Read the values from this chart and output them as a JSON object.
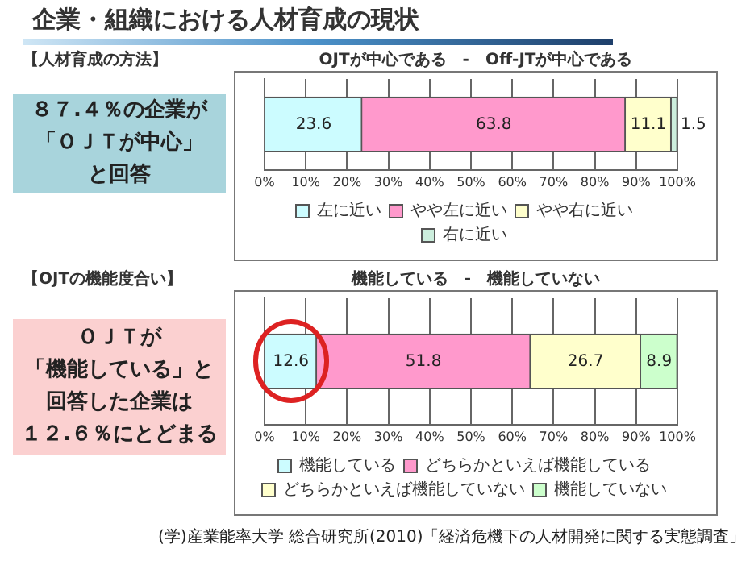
{
  "chart_data": [
    {
      "type": "bar",
      "title": "企業・組織における人材育成の現状",
      "subtitle": "【人材育成の方法】",
      "orientation": "horizontal",
      "stacked": true,
      "categories": [
        null
      ],
      "series": [
        {
          "name": "左に近い",
          "color": "#ccfcff",
          "values": [
            23.6
          ]
        },
        {
          "name": "やや左に近い",
          "color": "#ff99cc",
          "values": [
            63.8
          ]
        },
        {
          "name": "やや右に近い",
          "color": "#ffffcc",
          "values": [
            11.1
          ]
        },
        {
          "name": "右に近い",
          "color": "#cceedd",
          "values": [
            1.5
          ]
        }
      ],
      "xlim": [
        0,
        100
      ],
      "xticks": [
        {
          "value": 0,
          "label": "0%"
        },
        {
          "value": 10,
          "label": "10%"
        },
        {
          "value": 20,
          "label": "20%"
        },
        {
          "value": 30,
          "label": "30%"
        },
        {
          "value": 40,
          "label": "40%"
        },
        {
          "value": 50,
          "label": "50%"
        },
        {
          "value": 60,
          "label": "60%"
        },
        {
          "value": 70,
          "label": "70%"
        },
        {
          "value": 80,
          "label": "80%"
        },
        {
          "value": 90,
          "label": "90%"
        },
        {
          "value": 100,
          "label": "100%"
        }
      ],
      "grid": "x",
      "legend": "bottom",
      "tick_labels": "x",
      "data_labels": true,
      "annotations": [
        "OJTが中心である　-　Off-JTが中心である",
        "８７.４％の企業が",
        "「ＯＪＴが中心」",
        "と回答"
      ]
    },
    {
      "type": "bar",
      "subtitle": "【OJTの機能度合い】",
      "orientation": "horizontal",
      "stacked": true,
      "categories": [
        null
      ],
      "series": [
        {
          "name": "機能している",
          "color": "#ccfcff",
          "values": [
            12.6
          ]
        },
        {
          "name": "どちらかといえば機能している",
          "color": "#ff99cc",
          "values": [
            51.8
          ]
        },
        {
          "name": "どちらかといえば機能していない",
          "color": "#ffffcc",
          "values": [
            26.7
          ]
        },
        {
          "name": "機能していない",
          "color": "#ccffcc",
          "values": [
            8.9
          ]
        }
      ],
      "xlim": [
        0,
        100
      ],
      "xticks": [
        {
          "value": 0,
          "label": "0%"
        },
        {
          "value": 10,
          "label": "10%"
        },
        {
          "value": 20,
          "label": "20%"
        },
        {
          "value": 30,
          "label": "30%"
        },
        {
          "value": 40,
          "label": "40%"
        },
        {
          "value": 50,
          "label": "50%"
        },
        {
          "value": 60,
          "label": "60%"
        },
        {
          "value": 70,
          "label": "70%"
        },
        {
          "value": 80,
          "label": "80%"
        },
        {
          "value": 90,
          "label": "90%"
        },
        {
          "value": 100,
          "label": "100%"
        }
      ],
      "grid": "x",
      "legend": "bottom",
      "tick_labels": "x",
      "data_labels": true,
      "annotations": [
        "機能している　-　機能していない",
        "ＯＪＴが",
        "「機能している」と",
        "回答した企業は",
        "１２.６％にとどまる",
        "(学)産業能率大学 総合研究所(2010)「経済危機下の人材開発に関する実態調査」"
      ]
    }
  ]
}
